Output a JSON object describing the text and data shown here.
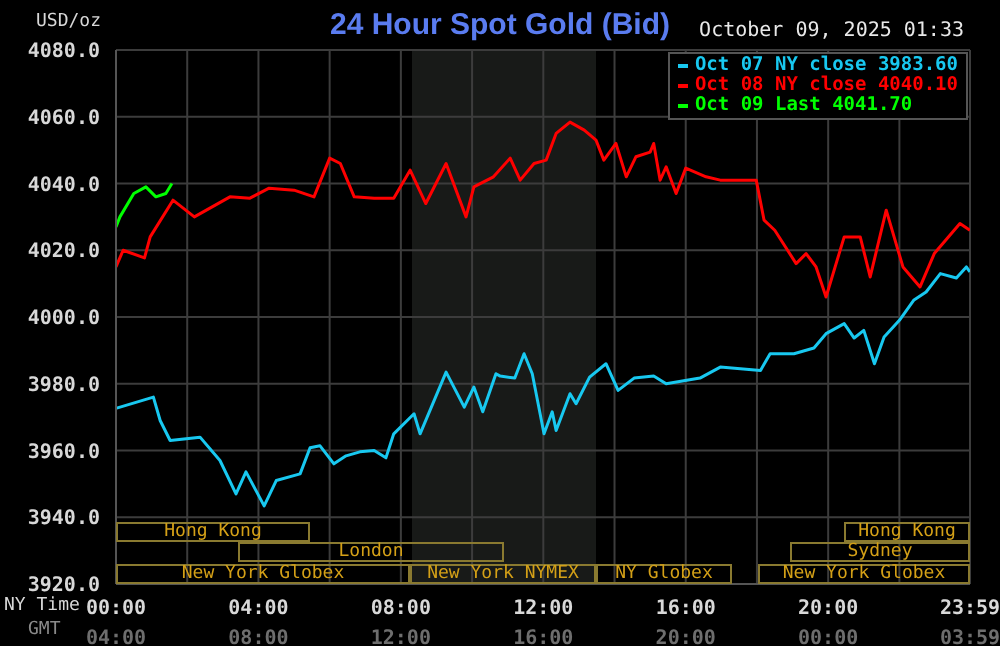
{
  "chart_data": {
    "type": "line",
    "title": "24 Hour Spot Gold (Bid)",
    "subtitle": "October 09, 2025 01:33",
    "ylabel": "USD/oz",
    "xlabel": "NY Time",
    "x2label": "GMT",
    "xlim": [
      0,
      23.983
    ],
    "xticks": [
      {
        "value": 0,
        "label": "00:00"
      },
      {
        "value": 2,
        "label": null
      },
      {
        "value": 4,
        "label": "04:00"
      },
      {
        "value": 6,
        "label": null
      },
      {
        "value": 8,
        "label": "08:00"
      },
      {
        "value": 10,
        "label": null
      },
      {
        "value": 12,
        "label": "12:00"
      },
      {
        "value": 14,
        "label": null
      },
      {
        "value": 16,
        "label": "16:00"
      },
      {
        "value": 18,
        "label": null
      },
      {
        "value": 20,
        "label": "20:00"
      },
      {
        "value": 22,
        "label": null
      },
      {
        "value": 23.983,
        "label": "23:59"
      }
    ],
    "x2lim": [
      "2025-10-08T04:00",
      "2025-10-09T03:59"
    ],
    "x2ticks": [
      {
        "value": "2025-10-08T04:00",
        "label": "04:00"
      },
      {
        "value": "2025-10-08T08:00",
        "label": "08:00"
      },
      {
        "value": "2025-10-08T12:00",
        "label": "12:00"
      },
      {
        "value": "2025-10-08T16:00",
        "label": "16:00"
      },
      {
        "value": "2025-10-08T20:00",
        "label": "20:00"
      },
      {
        "value": "2025-10-09T00:00",
        "label": "00:00"
      },
      {
        "value": "2025-10-09T03:59",
        "label": "03:59"
      }
    ],
    "ylim": [
      3920,
      4080
    ],
    "yticks": [
      {
        "value": 3920,
        "label": "3920.0"
      },
      {
        "value": 3940,
        "label": "3940.0"
      },
      {
        "value": 3960,
        "label": "3960.0"
      },
      {
        "value": 3980,
        "label": "3980.0"
      },
      {
        "value": 4000,
        "label": "4000.0"
      },
      {
        "value": 4020,
        "label": "4020.0"
      },
      {
        "value": 4040,
        "label": "4040.0"
      },
      {
        "value": 4060,
        "label": "4060.0"
      },
      {
        "value": 4080,
        "label": "4080.0"
      }
    ],
    "grid": true,
    "legend": "top right",
    "marker": "none",
    "line_style": "solid",
    "bands": [
      {
        "axis": "x",
        "from": 8.3,
        "to": 13.5,
        "color": "#181a18"
      }
    ],
    "annotations": [
      "Hong Kong",
      "London",
      "New York Globex",
      "New York NYMEX",
      "NY Globex",
      "Hong Kong",
      "Sydney",
      "New York Globex"
    ],
    "series": [
      {
        "name": "Oct 07 NY close 3983.60",
        "color": "#18c8f0",
        "x": [
          0.02,
          1.05,
          1.24,
          1.52,
          2.36,
          2.92,
          3.37,
          3.65,
          4.16,
          4.5,
          5.17,
          5.45,
          5.73,
          6.12,
          6.46,
          6.85,
          7.25,
          7.58,
          7.8,
          8.37,
          8.54,
          9.27,
          9.78,
          10.05,
          10.3,
          10.67,
          10.79,
          11.2,
          11.46,
          11.69,
          12.02,
          12.25,
          12.36,
          12.75,
          12.92,
          13.3,
          13.76,
          14.1,
          14.55,
          15.1,
          15.45,
          16.4,
          16.97,
          18.1,
          18.37,
          19.04,
          19.6,
          19.94,
          20.45,
          20.73,
          21.0,
          21.3,
          21.57,
          22.0,
          22.4,
          22.75,
          23.15,
          23.6,
          23.88,
          23.98
        ],
        "values": [
          3972.7,
          3976,
          3969,
          3963,
          3964,
          3957,
          3947,
          3953.6,
          3943.4,
          3951,
          3953,
          3960.8,
          3961.4,
          3956,
          3958.4,
          3959.6,
          3960,
          3957.8,
          3965,
          3971,
          3965,
          3983.5,
          3973,
          3979,
          3971.6,
          3983,
          3982.3,
          3981.7,
          3989,
          3983,
          3965,
          3971.6,
          3966,
          3977,
          3974,
          3982,
          3986,
          3978,
          3981.7,
          3982.3,
          3980,
          3981.7,
          3985,
          3984,
          3989,
          3989,
          3990.7,
          3995,
          3998,
          3993.7,
          3996,
          3986,
          3994,
          3999,
          4005,
          4007.5,
          4013,
          4011.7,
          4015,
          4013.5
        ]
      },
      {
        "name": "Oct 08 NY close 4040.10",
        "color": "#ff0000",
        "x": [
          0,
          0.2,
          0.8,
          0.96,
          1.6,
          2.2,
          3.2,
          3.76,
          4.3,
          5.0,
          5.56,
          6.0,
          6.3,
          6.69,
          7.25,
          7.8,
          8.26,
          8.7,
          9.27,
          9.83,
          10.05,
          10.6,
          11.07,
          11.35,
          11.74,
          12.08,
          12.36,
          12.75,
          13.15,
          13.48,
          13.7,
          14.04,
          14.33,
          14.6,
          15.0,
          15.1,
          15.28,
          15.45,
          15.73,
          16.0,
          16.57,
          16.97,
          17.98,
          18.2,
          18.5,
          19.1,
          19.38,
          19.66,
          19.94,
          20.45,
          20.9,
          21.18,
          21.63,
          22.1,
          22.58,
          22.98,
          23.7,
          23.98
        ],
        "values": [
          4015,
          4020,
          4017.7,
          4024,
          4035,
          4030,
          4036,
          4035.6,
          4038.6,
          4038,
          4036,
          4047.6,
          4046,
          4036,
          4035.6,
          4035.6,
          4044,
          4034,
          4046,
          4030,
          4039,
          4042,
          4047.6,
          4041,
          4046,
          4047,
          4055,
          4058.4,
          4056,
          4053,
          4047,
          4052,
          4042,
          4048,
          4049.4,
          4052,
          4041,
          4045,
          4037,
          4044.6,
          4042,
          4041,
          4041,
          4029,
          4026,
          4016,
          4019,
          4015,
          4006,
          4024,
          4024,
          4012,
          4032,
          4015,
          4009,
          4019,
          4028,
          4026
        ]
      },
      {
        "name": "Oct 09 Last 4041.70",
        "color": "#00ff00",
        "x": [
          0,
          0.11,
          0.5,
          0.84,
          1.12,
          1.4,
          1.57
        ],
        "values": [
          4027,
          4030,
          4037,
          4039,
          4036,
          4037,
          4040
        ]
      }
    ]
  }
}
